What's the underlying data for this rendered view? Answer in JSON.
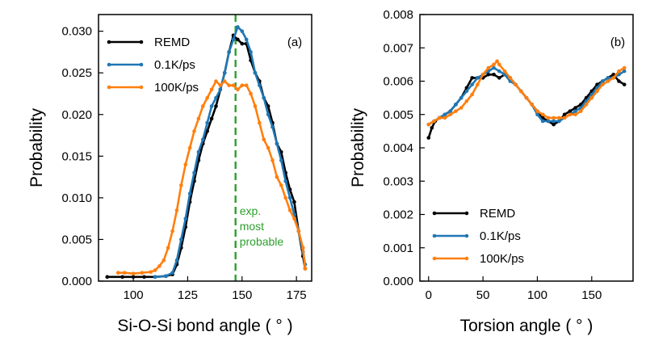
{
  "chart_data": [
    {
      "panel": "(a)",
      "type": "line",
      "xlabel": "Si-O-Si bond angle (  ° )",
      "ylabel": "Probability",
      "xlim": [
        84,
        182
      ],
      "ylim": [
        0,
        0.032
      ],
      "xticks": [
        100,
        125,
        150,
        175
      ],
      "yticks": [
        0.0,
        0.005,
        0.01,
        0.015,
        0.02,
        0.025,
        0.03
      ],
      "ytick_labels": [
        "0.000",
        "0.005",
        "0.010",
        "0.015",
        "0.020",
        "0.025",
        "0.030"
      ],
      "legend_position": "top-left",
      "reference_line": {
        "x": 147,
        "color": "#2ca02c",
        "label_lines": [
          "exp.",
          "most",
          "probable"
        ]
      },
      "series": [
        {
          "name": "REMD",
          "color": "#000000",
          "points": [
            [
              88,
              0.0005
            ],
            [
              95,
              0.0005
            ],
            [
              100,
              0.0005
            ],
            [
              105,
              0.0005
            ],
            [
              110,
              0.0005
            ],
            [
              115,
              0.0006
            ],
            [
              118,
              0.0008
            ],
            [
              120,
              0.002
            ],
            [
              122,
              0.004
            ],
            [
              124,
              0.0065
            ],
            [
              126,
              0.0095
            ],
            [
              128,
              0.012
            ],
            [
              130,
              0.0145
            ],
            [
              132,
              0.0165
            ],
            [
              134,
              0.018
            ],
            [
              136,
              0.0195
            ],
            [
              138,
              0.021
            ],
            [
              140,
              0.023
            ],
            [
              142,
              0.025
            ],
            [
              144,
              0.0275
            ],
            [
              146,
              0.0295
            ],
            [
              148,
              0.029
            ],
            [
              150,
              0.0285
            ],
            [
              152,
              0.0285
            ],
            [
              154,
              0.0265
            ],
            [
              156,
              0.025
            ],
            [
              158,
              0.024
            ],
            [
              160,
              0.022
            ],
            [
              162,
              0.021
            ],
            [
              164,
              0.019
            ],
            [
              166,
              0.0165
            ],
            [
              168,
              0.0155
            ],
            [
              170,
              0.013
            ],
            [
              172,
              0.011
            ],
            [
              174,
              0.0095
            ],
            [
              176,
              0.006
            ],
            [
              178,
              0.003
            ],
            [
              179,
              0.0015
            ]
          ]
        },
        {
          "name": "0.1K/ps",
          "color": "#1f77b4",
          "points": [
            [
              110,
              0.0005
            ],
            [
              115,
              0.0006
            ],
            [
              118,
              0.001
            ],
            [
              120,
              0.0025
            ],
            [
              122,
              0.005
            ],
            [
              124,
              0.0075
            ],
            [
              126,
              0.0105
            ],
            [
              128,
              0.013
            ],
            [
              130,
              0.0155
            ],
            [
              132,
              0.017
            ],
            [
              134,
              0.019
            ],
            [
              136,
              0.021
            ],
            [
              138,
              0.022
            ],
            [
              140,
              0.023
            ],
            [
              142,
              0.025
            ],
            [
              144,
              0.0275
            ],
            [
              146,
              0.029
            ],
            [
              148,
              0.0305
            ],
            [
              150,
              0.03
            ],
            [
              152,
              0.029
            ],
            [
              154,
              0.0275
            ],
            [
              156,
              0.025
            ],
            [
              158,
              0.0235
            ],
            [
              160,
              0.022
            ],
            [
              162,
              0.02
            ],
            [
              164,
              0.0185
            ],
            [
              166,
              0.0165
            ],
            [
              168,
              0.0145
            ],
            [
              170,
              0.012
            ],
            [
              172,
              0.01
            ],
            [
              174,
              0.008
            ],
            [
              176,
              0.006
            ],
            [
              178,
              0.0035
            ],
            [
              179,
              0.002
            ]
          ]
        },
        {
          "name": "100K/ps",
          "color": "#ff7f0e",
          "points": [
            [
              93,
              0.001
            ],
            [
              96,
              0.001
            ],
            [
              100,
              0.0009
            ],
            [
              104,
              0.001
            ],
            [
              108,
              0.0011
            ],
            [
              110,
              0.0013
            ],
            [
              112,
              0.0018
            ],
            [
              114,
              0.0025
            ],
            [
              116,
              0.004
            ],
            [
              118,
              0.006
            ],
            [
              120,
              0.0085
            ],
            [
              122,
              0.0115
            ],
            [
              124,
              0.014
            ],
            [
              126,
              0.016
            ],
            [
              128,
              0.018
            ],
            [
              130,
              0.0195
            ],
            [
              132,
              0.021
            ],
            [
              134,
              0.022
            ],
            [
              136,
              0.023
            ],
            [
              138,
              0.024
            ],
            [
              140,
              0.0235
            ],
            [
              142,
              0.024
            ],
            [
              144,
              0.0235
            ],
            [
              146,
              0.0235
            ],
            [
              148,
              0.023
            ],
            [
              150,
              0.0235
            ],
            [
              152,
              0.0235
            ],
            [
              154,
              0.0225
            ],
            [
              156,
              0.021
            ],
            [
              158,
              0.019
            ],
            [
              160,
              0.017
            ],
            [
              162,
              0.016
            ],
            [
              164,
              0.0145
            ],
            [
              166,
              0.0125
            ],
            [
              168,
              0.0115
            ],
            [
              170,
              0.01
            ],
            [
              172,
              0.0085
            ],
            [
              174,
              0.0075
            ],
            [
              176,
              0.006
            ],
            [
              178,
              0.004
            ],
            [
              179,
              0.0015
            ]
          ]
        }
      ]
    },
    {
      "panel": "(b)",
      "type": "line",
      "xlabel": "Torsion angle (  ° )",
      "ylabel": "Probability",
      "xlim": [
        -8,
        188
      ],
      "ylim": [
        0,
        0.008
      ],
      "xticks": [
        0,
        50,
        100,
        150
      ],
      "yticks": [
        0.0,
        0.001,
        0.002,
        0.003,
        0.004,
        0.005,
        0.006,
        0.007,
        0.008
      ],
      "ytick_labels": [
        "0.000",
        "0.001",
        "0.002",
        "0.003",
        "0.004",
        "0.005",
        "0.006",
        "0.007",
        "0.008"
      ],
      "legend_position": "bottom-left",
      "series": [
        {
          "name": "REMD",
          "color": "#000000",
          "points": [
            [
              0,
              0.0043
            ],
            [
              3,
              0.0046
            ],
            [
              6,
              0.0048
            ],
            [
              10,
              0.0049
            ],
            [
              15,
              0.005
            ],
            [
              20,
              0.0051
            ],
            [
              25,
              0.0053
            ],
            [
              30,
              0.0055
            ],
            [
              35,
              0.0058
            ],
            [
              40,
              0.0061
            ],
            [
              45,
              0.0061
            ],
            [
              50,
              0.0061
            ],
            [
              55,
              0.0062
            ],
            [
              60,
              0.0062
            ],
            [
              65,
              0.0061
            ],
            [
              70,
              0.0062
            ],
            [
              75,
              0.0061
            ],
            [
              80,
              0.0059
            ],
            [
              85,
              0.0057
            ],
            [
              90,
              0.0055
            ],
            [
              95,
              0.0053
            ],
            [
              100,
              0.0051
            ],
            [
              105,
              0.0049
            ],
            [
              110,
              0.0048
            ],
            [
              115,
              0.0047
            ],
            [
              120,
              0.0048
            ],
            [
              125,
              0.005
            ],
            [
              130,
              0.0051
            ],
            [
              135,
              0.0052
            ],
            [
              140,
              0.0053
            ],
            [
              145,
              0.0055
            ],
            [
              150,
              0.0057
            ],
            [
              155,
              0.0059
            ],
            [
              160,
              0.006
            ],
            [
              165,
              0.0061
            ],
            [
              170,
              0.0062
            ],
            [
              175,
              0.006
            ],
            [
              180,
              0.0059
            ]
          ]
        },
        {
          "name": "0.1K/ps",
          "color": "#1f77b4",
          "points": [
            [
              0,
              0.0047
            ],
            [
              5,
              0.0048
            ],
            [
              10,
              0.0049
            ],
            [
              15,
              0.005
            ],
            [
              20,
              0.0051
            ],
            [
              25,
              0.0053
            ],
            [
              30,
              0.0055
            ],
            [
              35,
              0.0057
            ],
            [
              40,
              0.0059
            ],
            [
              45,
              0.0061
            ],
            [
              50,
              0.0062
            ],
            [
              55,
              0.0063
            ],
            [
              60,
              0.0064
            ],
            [
              65,
              0.0063
            ],
            [
              70,
              0.0062
            ],
            [
              75,
              0.006
            ],
            [
              80,
              0.0059
            ],
            [
              85,
              0.0057
            ],
            [
              90,
              0.0055
            ],
            [
              95,
              0.0053
            ],
            [
              100,
              0.005
            ],
            [
              105,
              0.0048
            ],
            [
              110,
              0.0048
            ],
            [
              115,
              0.0048
            ],
            [
              120,
              0.0048
            ],
            [
              125,
              0.0049
            ],
            [
              130,
              0.005
            ],
            [
              135,
              0.0051
            ],
            [
              140,
              0.0052
            ],
            [
              145,
              0.0054
            ],
            [
              150,
              0.0056
            ],
            [
              155,
              0.0058
            ],
            [
              160,
              0.006
            ],
            [
              165,
              0.0061
            ],
            [
              170,
              0.0061
            ],
            [
              175,
              0.0062
            ],
            [
              180,
              0.0063
            ]
          ]
        },
        {
          "name": "100K/ps",
          "color": "#ff7f0e",
          "points": [
            [
              0,
              0.0047
            ],
            [
              5,
              0.0048
            ],
            [
              10,
              0.0049
            ],
            [
              15,
              0.0049
            ],
            [
              20,
              0.005
            ],
            [
              25,
              0.0051
            ],
            [
              30,
              0.0052
            ],
            [
              35,
              0.0054
            ],
            [
              40,
              0.0056
            ],
            [
              45,
              0.0059
            ],
            [
              50,
              0.0062
            ],
            [
              55,
              0.0064
            ],
            [
              60,
              0.0065
            ],
            [
              63,
              0.0066
            ],
            [
              65,
              0.0065
            ],
            [
              70,
              0.0063
            ],
            [
              75,
              0.0061
            ],
            [
              80,
              0.0059
            ],
            [
              85,
              0.0057
            ],
            [
              90,
              0.0055
            ],
            [
              95,
              0.0053
            ],
            [
              100,
              0.0051
            ],
            [
              105,
              0.005
            ],
            [
              110,
              0.0049
            ],
            [
              115,
              0.0049
            ],
            [
              120,
              0.0049
            ],
            [
              125,
              0.0049
            ],
            [
              130,
              0.005
            ],
            [
              135,
              0.005
            ],
            [
              140,
              0.0051
            ],
            [
              145,
              0.0053
            ],
            [
              150,
              0.0055
            ],
            [
              155,
              0.0057
            ],
            [
              160,
              0.0059
            ],
            [
              165,
              0.006
            ],
            [
              170,
              0.0061
            ],
            [
              175,
              0.0063
            ],
            [
              180,
              0.0064
            ]
          ]
        }
      ]
    }
  ]
}
